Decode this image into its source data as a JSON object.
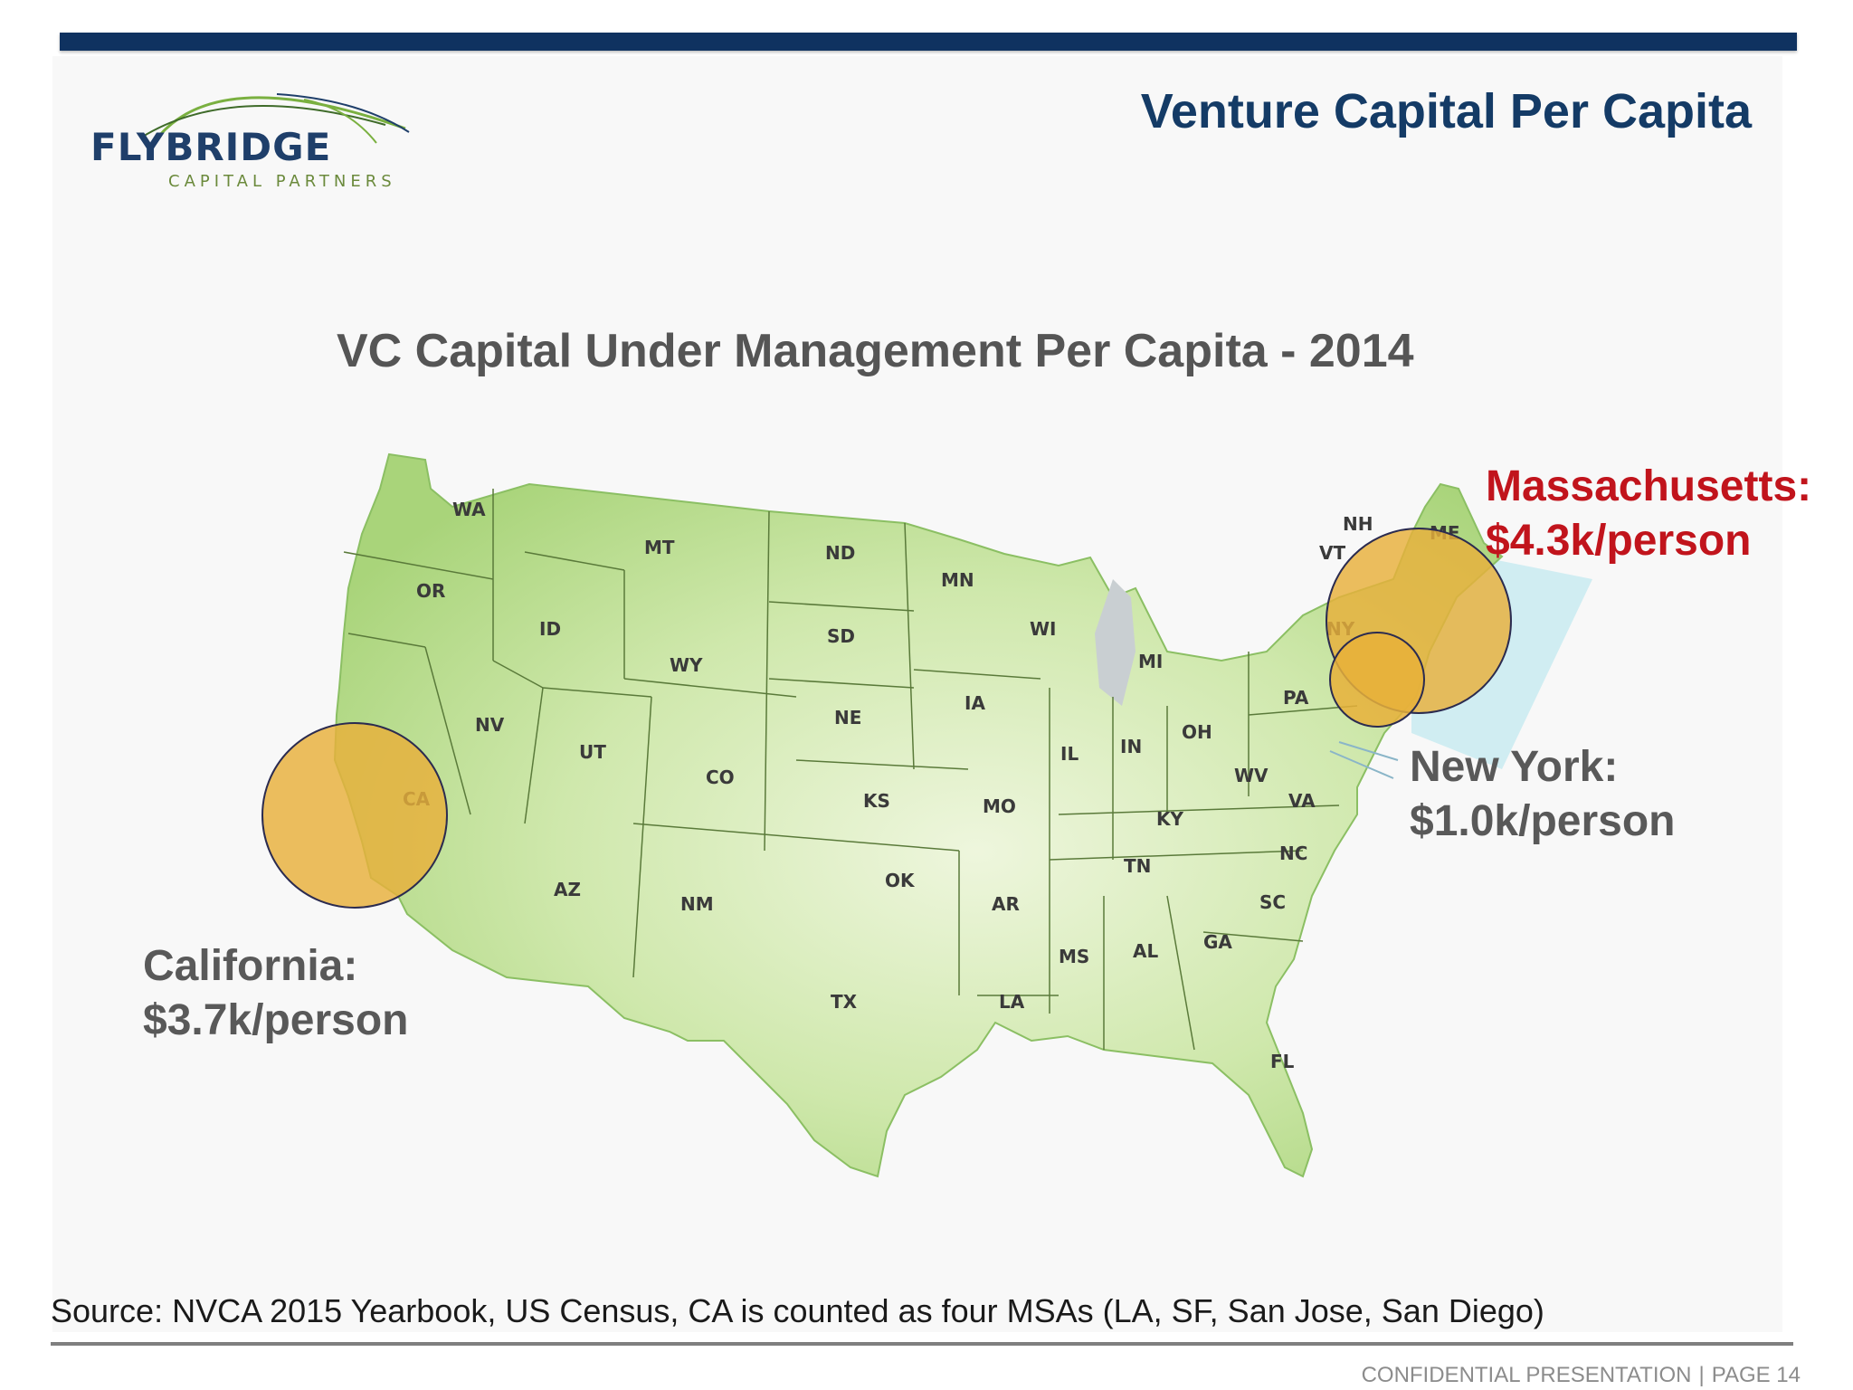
{
  "header": {
    "title": "Venture Capital Per Capita",
    "bar_color": "#0f3260"
  },
  "logo": {
    "name": "FLYBRIDGE",
    "subtitle": "CAPITAL PARTNERS"
  },
  "map": {
    "title": "VC Capital Under Management Per Capita - 2014",
    "state_labels": [
      "WA",
      "OR",
      "CA",
      "ID",
      "NV",
      "MT",
      "WY",
      "UT",
      "AZ",
      "CO",
      "NM",
      "ND",
      "SD",
      "NE",
      "KS",
      "OK",
      "TX",
      "MN",
      "IA",
      "MO",
      "AR",
      "LA",
      "WI",
      "IL",
      "MI",
      "IN",
      "OH",
      "KY",
      "TN",
      "MS",
      "AL",
      "GA",
      "FL",
      "SC",
      "NC",
      "VA",
      "WV",
      "PA",
      "NY",
      "VT",
      "NH",
      "ME"
    ],
    "highlights": [
      {
        "state": "Massachusetts",
        "label": "Massachusetts:",
        "value": "$4.3k/person",
        "value_k": 4.3,
        "color": "#c1141c"
      },
      {
        "state": "New York",
        "label": "New York:",
        "value": "$1.0k/person",
        "value_k": 1.0,
        "color": "#595959"
      },
      {
        "state": "California",
        "label": "California:",
        "value": "$3.7k/person",
        "value_k": 3.7,
        "color": "#595959"
      }
    ],
    "colors": {
      "land": "#b6dc8a",
      "bubble": "#e8b03a"
    }
  },
  "source": "Source:  NVCA 2015 Yearbook, US Census, CA is counted as four MSAs (LA, SF, San Jose, San Diego)",
  "footer": {
    "left": "CONFIDENTIAL PRESENTATION",
    "separator": "|",
    "right": "PAGE 14"
  }
}
